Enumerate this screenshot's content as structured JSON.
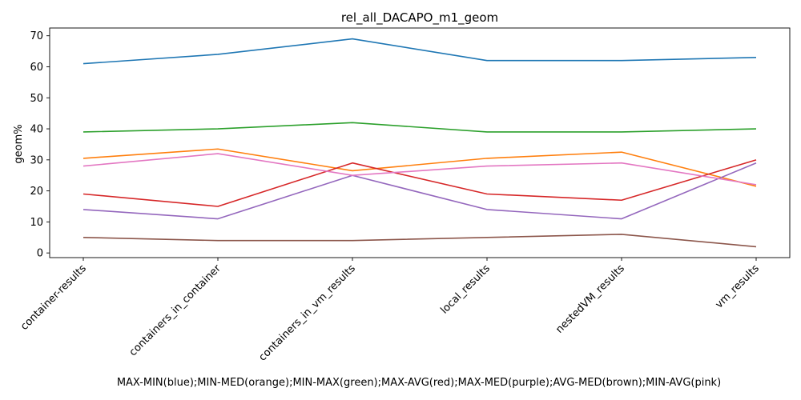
{
  "chart_data": {
    "type": "line",
    "title": "rel_all_DACAPO_m1_geom",
    "xlabel": "MAX-MIN(blue);MIN-MED(orange);MIN-MAX(green);MAX-AVG(red);MAX-MED(purple);AVG-MED(brown);MIN-AVG(pink)",
    "ylabel": "geom%",
    "categories": [
      "container-results",
      "containers_in_container",
      "containers_in_vm_results",
      "local_results",
      "nestedVM_results",
      "vm_results"
    ],
    "ylim": [
      -1.5,
      72.5
    ],
    "yticks": [
      0,
      10,
      20,
      30,
      40,
      50,
      60,
      70
    ],
    "grid": false,
    "series": [
      {
        "color": "#1f77b4",
        "values": [
          61,
          64,
          69,
          62,
          62,
          63
        ]
      },
      {
        "color": "#ff7f0e",
        "values": [
          30.5,
          33.5,
          26.5,
          30.5,
          32.5,
          21.5
        ]
      },
      {
        "color": "#2ca02c",
        "values": [
          39,
          40,
          42,
          39,
          39,
          40
        ]
      },
      {
        "color": "#d62728",
        "values": [
          19,
          15,
          29,
          19,
          17,
          30
        ]
      },
      {
        "color": "#9467bd",
        "values": [
          14,
          11,
          25,
          14,
          11,
          29
        ]
      },
      {
        "color": "#8c564b",
        "values": [
          5,
          4,
          4,
          5,
          6,
          2
        ]
      },
      {
        "color": "#e377c2",
        "values": [
          28,
          32,
          25,
          28,
          29,
          22
        ]
      }
    ]
  }
}
